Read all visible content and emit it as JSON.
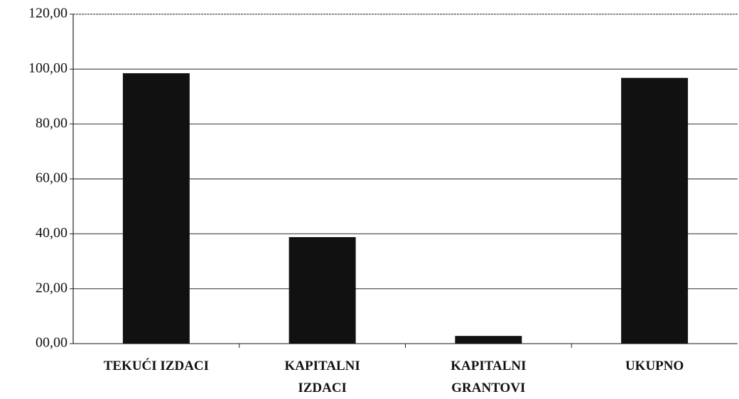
{
  "chart_data": {
    "type": "bar",
    "categories": [
      "TEKUĆI IZDACI",
      "KAPITALNI IZDACI",
      "KAPITALNI GRANTOVI",
      "UKUPNO"
    ],
    "values": [
      98.5,
      38.8,
      2.8,
      96.8
    ],
    "color": "#111111",
    "ylim": [
      0,
      120
    ],
    "yticks": [
      {
        "value": 0,
        "label": "00,00"
      },
      {
        "value": 20,
        "label": "20,00"
      },
      {
        "value": 40,
        "label": "40,00"
      },
      {
        "value": 60,
        "label": "60,00"
      },
      {
        "value": 80,
        "label": "80,00"
      },
      {
        "value": 100,
        "label": "100,00"
      },
      {
        "value": 120,
        "label": "120,00"
      }
    ],
    "grid": true
  }
}
